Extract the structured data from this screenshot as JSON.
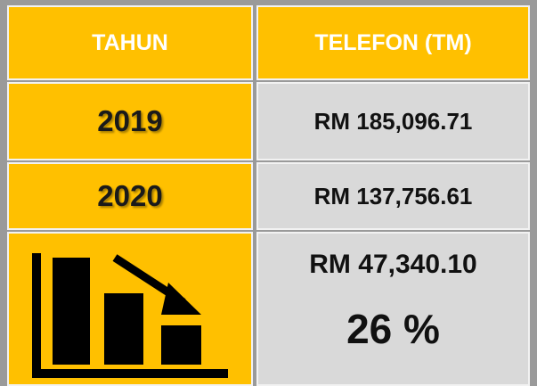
{
  "table": {
    "header": [
      "TAHUN",
      "TELEFON (TM)"
    ],
    "rows": [
      [
        "2019",
        "RM 185,096.71"
      ],
      [
        "2020",
        "RM 137,756.61"
      ]
    ]
  },
  "summary": {
    "difference": "RM 47,340.10",
    "percent": "26 %"
  }
}
